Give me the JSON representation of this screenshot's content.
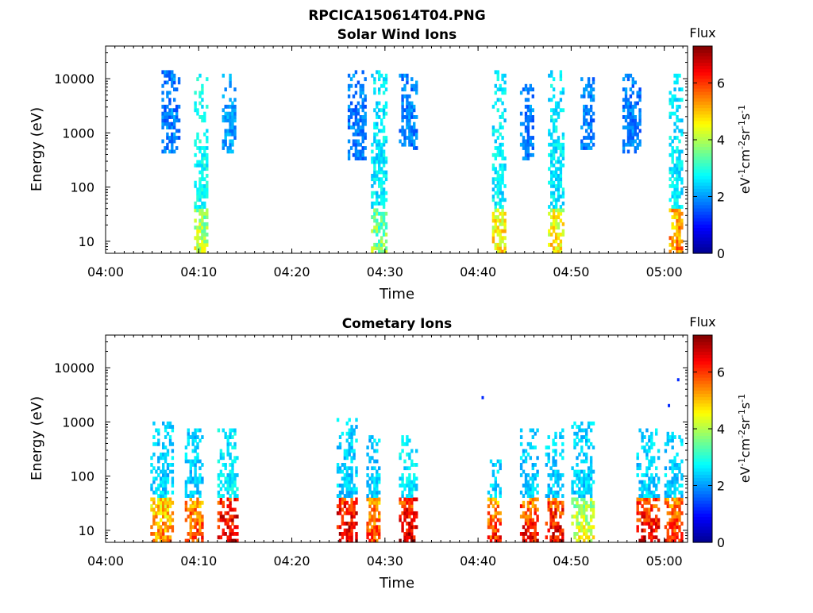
{
  "figure_title": "RPCICA150614T04.PNG",
  "colors": {
    "jet": [
      "#00008f",
      "#0000ff",
      "#0080ff",
      "#00ffff",
      "#80ff80",
      "#ffff00",
      "#ff8000",
      "#ff0000",
      "#800000"
    ],
    "axis": "#000000",
    "background": "#ffffff"
  },
  "chart_data": [
    {
      "type": "heatmap",
      "title": "Solar Wind Ions",
      "xlabel": "Time",
      "ylabel": "Energy (eV)",
      "xticks": [
        "04:00",
        "04:10",
        "04:20",
        "04:30",
        "04:40",
        "04:50",
        "05:00"
      ],
      "xlim_minutes": [
        0,
        62.5
      ],
      "yscale": "log",
      "ylim": [
        6,
        40000
      ],
      "yticks": [
        {
          "value": 10,
          "label": "10"
        },
        {
          "value": 100,
          "label": "100"
        },
        {
          "value": 1000,
          "label": "1000"
        },
        {
          "value": 10000,
          "label": "10000"
        }
      ],
      "colorbar": {
        "title": "Flux",
        "label": "eV-1 cm-2 sr-1 s-1",
        "ticks": [
          "0",
          "2",
          "4",
          "6"
        ],
        "range": [
          0,
          7.3
        ]
      },
      "bursts": [
        {
          "t0": 9.5,
          "t1": 11.0,
          "emin": 6,
          "emax": 12000,
          "peak_e": 400,
          "level": 2.8,
          "low_level": 4.2
        },
        {
          "t0": 12.5,
          "t1": 14.0,
          "emin": 400,
          "emax": 12000,
          "peak_e": 3000,
          "level": 2.0,
          "low_level": 2.0
        },
        {
          "t0": 6.0,
          "t1": 8.0,
          "emin": 400,
          "emax": 15000,
          "peak_e": 4000,
          "level": 1.8,
          "low_level": 1.8
        },
        {
          "t0": 28.5,
          "t1": 30.2,
          "emin": 6,
          "emax": 15000,
          "peak_e": 500,
          "level": 2.6,
          "low_level": 3.8
        },
        {
          "t0": 26.0,
          "t1": 28.0,
          "emin": 300,
          "emax": 15000,
          "peak_e": 3000,
          "level": 1.8,
          "low_level": 1.8
        },
        {
          "t0": 31.5,
          "t1": 33.5,
          "emin": 500,
          "emax": 12000,
          "peak_e": 3000,
          "level": 1.8,
          "low_level": 1.8
        },
        {
          "t0": 41.5,
          "t1": 43.0,
          "emin": 6,
          "emax": 15000,
          "peak_e": 500,
          "level": 2.6,
          "low_level": 4.8
        },
        {
          "t0": 44.5,
          "t1": 46.0,
          "emin": 300,
          "emax": 8000,
          "peak_e": 2000,
          "level": 1.8,
          "low_level": 1.8
        },
        {
          "t0": 47.5,
          "t1": 49.2,
          "emin": 6,
          "emax": 15000,
          "peak_e": 500,
          "level": 2.6,
          "low_level": 4.8
        },
        {
          "t0": 51.0,
          "t1": 52.5,
          "emin": 500,
          "emax": 10000,
          "peak_e": 3000,
          "level": 1.8,
          "low_level": 1.8
        },
        {
          "t0": 55.5,
          "t1": 57.5,
          "emin": 400,
          "emax": 12000,
          "peak_e": 2000,
          "level": 1.8,
          "low_level": 1.8
        },
        {
          "t0": 60.5,
          "t1": 62.0,
          "emin": 6,
          "emax": 12000,
          "peak_e": 400,
          "level": 2.6,
          "low_level": 5.5
        }
      ]
    },
    {
      "type": "heatmap",
      "title": "Cometary Ions",
      "xlabel": "Time",
      "ylabel": "Energy (eV)",
      "xticks": [
        "04:00",
        "04:10",
        "04:20",
        "04:30",
        "04:40",
        "04:50",
        "05:00"
      ],
      "xlim_minutes": [
        0,
        62.5
      ],
      "yscale": "log",
      "ylim": [
        6,
        40000
      ],
      "yticks": [
        {
          "value": 10,
          "label": "10"
        },
        {
          "value": 100,
          "label": "100"
        },
        {
          "value": 1000,
          "label": "1000"
        },
        {
          "value": 10000,
          "label": "10000"
        }
      ],
      "colorbar": {
        "title": "Flux",
        "label": "eV-1 cm-2 sr-1 s-1",
        "ticks": [
          "0",
          "2",
          "4",
          "6"
        ],
        "range": [
          0,
          7.3
        ]
      },
      "bursts": [
        {
          "t0": 4.8,
          "t1": 7.2,
          "emin": 6,
          "emax": 1000,
          "peak_e": 20,
          "level": 2.4,
          "low_level": 5.5
        },
        {
          "t0": 8.5,
          "t1": 10.5,
          "emin": 6,
          "emax": 800,
          "peak_e": 15,
          "level": 2.4,
          "low_level": 6.0
        },
        {
          "t0": 12.0,
          "t1": 14.2,
          "emin": 6,
          "emax": 800,
          "peak_e": 20,
          "level": 2.6,
          "low_level": 6.8
        },
        {
          "t0": 24.8,
          "t1": 27.0,
          "emin": 6,
          "emax": 1200,
          "peak_e": 20,
          "level": 2.4,
          "low_level": 6.8
        },
        {
          "t0": 28.0,
          "t1": 29.5,
          "emin": 6,
          "emax": 600,
          "peak_e": 10,
          "level": 2.4,
          "low_level": 6.0
        },
        {
          "t0": 31.5,
          "t1": 33.5,
          "emin": 6,
          "emax": 600,
          "peak_e": 20,
          "level": 2.6,
          "low_level": 6.8
        },
        {
          "t0": 41.0,
          "t1": 42.5,
          "emin": 6,
          "emax": 200,
          "peak_e": 20,
          "level": 2.4,
          "low_level": 6.2
        },
        {
          "t0": 44.5,
          "t1": 46.5,
          "emin": 6,
          "emax": 800,
          "peak_e": 10,
          "level": 2.4,
          "low_level": 6.4
        },
        {
          "t0": 47.2,
          "t1": 49.0,
          "emin": 6,
          "emax": 800,
          "peak_e": 20,
          "level": 2.4,
          "low_level": 6.6
        },
        {
          "t0": 50.0,
          "t1": 52.5,
          "emin": 6,
          "emax": 1000,
          "peak_e": 15,
          "level": 2.4,
          "low_level": 4.5
        },
        {
          "t0": 57.0,
          "t1": 59.5,
          "emin": 6,
          "emax": 800,
          "peak_e": 20,
          "level": 2.4,
          "low_level": 6.6
        },
        {
          "t0": 60.0,
          "t1": 62.0,
          "emin": 6,
          "emax": 700,
          "peak_e": 20,
          "level": 2.4,
          "low_level": 6.2
        }
      ],
      "isolated_points": [
        {
          "t": 40.5,
          "e": 2800,
          "level": 1.2
        },
        {
          "t": 61.5,
          "e": 6000,
          "level": 1.2
        },
        {
          "t": 60.5,
          "e": 2000,
          "level": 1.2
        },
        {
          "t": 61.8,
          "e": 450,
          "level": 2.6
        }
      ]
    }
  ]
}
